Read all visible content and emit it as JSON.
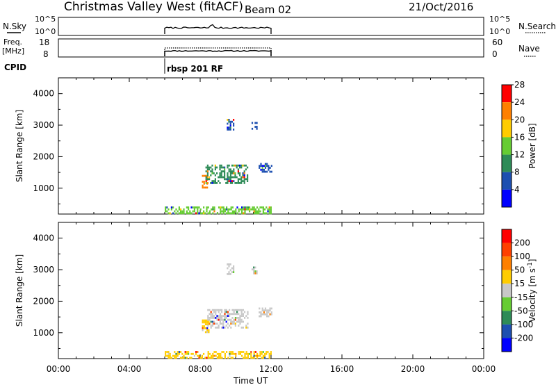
{
  "header": {
    "title": "Christmas Valley West (fitACF)",
    "beam": "Beam 02",
    "date": "21/Oct/2016"
  },
  "top_panels": {
    "nsky": {
      "label": "N.Sky",
      "right_label": "N.Search",
      "left_ticks": [
        "10^5",
        "10^0"
      ],
      "right_ticks": [
        "10^5",
        "10^0"
      ]
    },
    "freq": {
      "label_line1": "Freq.",
      "label_line2": "[MHz]",
      "right_label": "Nave",
      "left_ticks": [
        "18",
        "8"
      ],
      "right_ticks": [
        "60",
        "0"
      ]
    },
    "cpid": {
      "label": "CPID",
      "program": "rbsp 201 RF"
    }
  },
  "time_axis": {
    "label": "Time UT",
    "ticks": [
      "00:00",
      "04:00",
      "08:00",
      "12:00",
      "16:00",
      "20:00",
      "00:00"
    ],
    "range_hours": [
      0,
      24
    ],
    "data_coverage_hours": [
      6,
      12
    ]
  },
  "chart_data": [
    {
      "type": "heatmap",
      "name": "power",
      "ylabel": "Slant Range [km]",
      "ylim": [
        180,
        4500
      ],
      "yticks": [
        1000,
        2000,
        3000,
        4000
      ],
      "colorbar": {
        "label": "Power [dB]",
        "ticks": [
          "4",
          "8",
          "12",
          "16",
          "20",
          "24",
          "28"
        ],
        "colors": [
          "#0000ff",
          "#1d4fb0",
          "#2e8b57",
          "#66cc33",
          "#ffcc00",
          "#ff8000",
          "#ff0000"
        ],
        "range": [
          0,
          32
        ]
      },
      "regions": [
        {
          "t": [
            8.1,
            8.4
          ],
          "range_km": [
            1020,
            1420
          ],
          "color": "#ff8000"
        },
        {
          "t": [
            8.3,
            10.7
          ],
          "range_km": [
            1150,
            1750
          ],
          "color": "#2e8b57"
        },
        {
          "t": [
            9.5,
            9.9
          ],
          "range_km": [
            2880,
            3200
          ],
          "color": "#1d4fb0"
        },
        {
          "t": [
            10.9,
            11.2
          ],
          "range_km": [
            2900,
            3100
          ],
          "color": "#1d4fb0"
        },
        {
          "t": [
            11.3,
            12.0
          ],
          "range_km": [
            1500,
            1800
          ],
          "color": "#1d4fb0"
        },
        {
          "t": [
            6.0,
            12.0
          ],
          "range_km": [
            180,
            420
          ],
          "color": "#66cc33"
        }
      ]
    },
    {
      "type": "heatmap",
      "name": "velocity",
      "ylabel": "Slant Range [km]",
      "ylim": [
        180,
        4500
      ],
      "yticks": [
        1000,
        2000,
        3000,
        4000
      ],
      "colorbar": {
        "label": "Velocity [m s^-1]",
        "ticks": [
          "200",
          "100",
          "50",
          "15",
          "-15",
          "-50",
          "-100",
          "-200"
        ],
        "colors": [
          "#0000ff",
          "#1d4fb0",
          "#2e8b57",
          "#66cc33",
          "#c8c8c8",
          "#ffcc00",
          "#ff8000",
          "#ff4000",
          "#ff0000"
        ]
      },
      "regions": [
        {
          "t": [
            8.1,
            8.5
          ],
          "range_km": [
            1020,
            1420
          ],
          "color": "#ffcc00"
        },
        {
          "t": [
            8.4,
            10.7
          ],
          "range_km": [
            1150,
            1750
          ],
          "color": "#c8c8c8"
        },
        {
          "t": [
            9.5,
            9.9
          ],
          "range_km": [
            2880,
            3200
          ],
          "color": "#c8c8c8"
        },
        {
          "t": [
            10.9,
            11.2
          ],
          "range_km": [
            2900,
            3100
          ],
          "color": "#c8c8c8"
        },
        {
          "t": [
            11.3,
            12.0
          ],
          "range_km": [
            1500,
            1800
          ],
          "color": "#c8c8c8"
        },
        {
          "t": [
            6.0,
            12.0
          ],
          "range_km": [
            180,
            420
          ],
          "color": "#ffcc00"
        }
      ]
    }
  ]
}
